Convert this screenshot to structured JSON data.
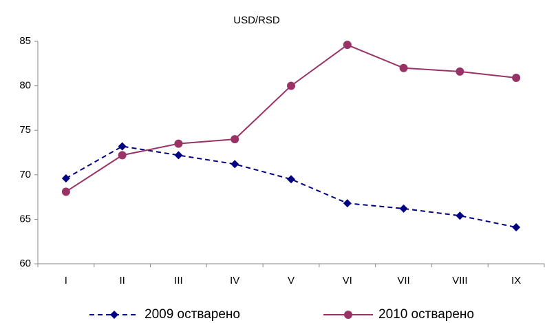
{
  "chart_data": {
    "type": "line",
    "title": "USD/RSD",
    "categories": [
      "I",
      "II",
      "III",
      "IV",
      "V",
      "VI",
      "VII",
      "VIII",
      "IX"
    ],
    "series": [
      {
        "name": "2009 остварено",
        "color": "#000080",
        "marker": "diamond",
        "dash": true,
        "values": [
          69.6,
          73.2,
          72.2,
          71.2,
          69.5,
          66.8,
          66.2,
          65.4,
          64.1
        ]
      },
      {
        "name": "2010 остварено",
        "color": "#993366",
        "marker": "circle",
        "dash": false,
        "values": [
          68.1,
          72.2,
          73.5,
          74.0,
          80.0,
          84.6,
          82.0,
          81.6,
          80.9
        ]
      }
    ],
    "ylim": [
      60,
      85
    ],
    "yticks": [
      60,
      65,
      70,
      75,
      80,
      85
    ],
    "grid": false
  }
}
